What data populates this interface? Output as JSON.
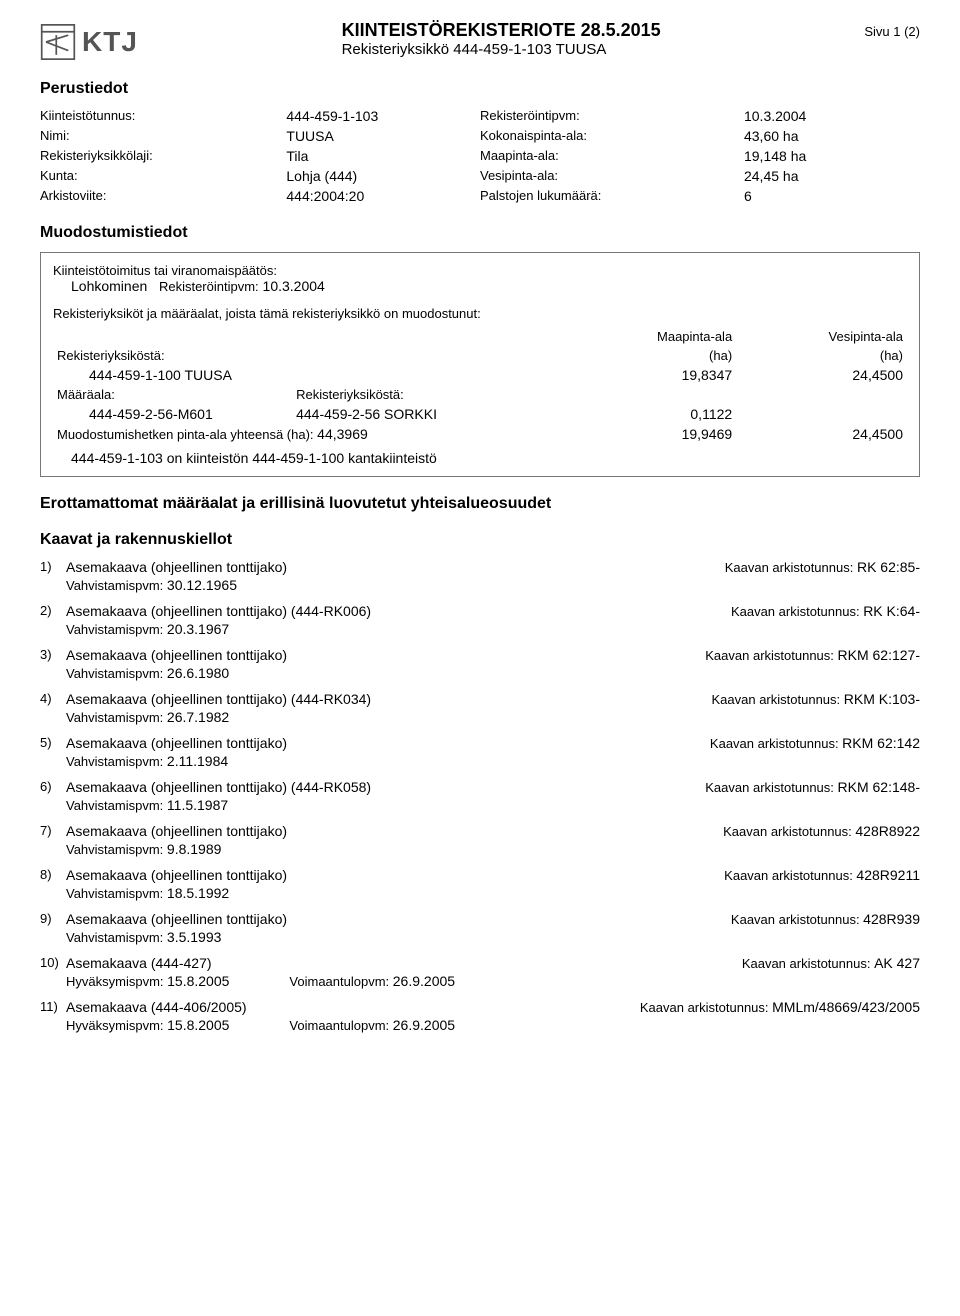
{
  "header": {
    "logo_text": "KTJ",
    "title": "KIINTEISTÖREKISTERIOTE 28.5.2015",
    "subtitle": "Rekisteriyksikkö 444-459-1-103 TUUSA",
    "page": "Sivu 1 (2)"
  },
  "perustiedot": {
    "heading": "Perustiedot",
    "rows": [
      {
        "l1": "Kiinteistötunnus:",
        "v1": "444-459-1-103",
        "l2": "Rekisteröintipvm:",
        "v2": "10.3.2004"
      },
      {
        "l1": "Nimi:",
        "v1": "TUUSA",
        "l2": "Kokonaispinta-ala:",
        "v2": "43,60 ha"
      },
      {
        "l1": "Rekisteriyksikkölaji:",
        "v1": "Tila",
        "l2": "Maapinta-ala:",
        "v2": "19,148 ha"
      },
      {
        "l1": "Kunta:",
        "v1": "Lohja (444)",
        "l2": "Vesipinta-ala:",
        "v2": "24,45 ha"
      },
      {
        "l1": "Arkistoviite:",
        "v1": "444:2004:20",
        "l2": "Palstojen lukumäärä:",
        "v2": "6"
      }
    ]
  },
  "muodostumistiedot": {
    "heading": "Muodostumistiedot",
    "box": {
      "line1_label": "Kiinteistötoimitus tai viranomaispäätös:",
      "line2_action": "Lohkominen",
      "line2_label": "Rekisteröintipvm:",
      "line2_value": "10.3.2004",
      "units_heading": "Rekisteriyksiköt ja määräalat, joista tämä rekisteriyksikkö on muodostunut:",
      "col_maapinta": "Maapinta-ala",
      "col_vesipinta": "Vesipinta-ala",
      "col_ha": "(ha)",
      "from_label": "Rekisteriyksiköstä:",
      "from_unit": "444-459-1-100 TUUSA",
      "from_maap": "19,8347",
      "from_vesip": "24,4500",
      "maaraala_label": "Määräala:",
      "maaraala_from_label": "Rekisteriyksiköstä:",
      "maaraala_id": "444-459-2-56-M601",
      "maaraala_from": "444-459-2-56 SORKKI",
      "maaraala_maap": "0,1122",
      "total_label": "Muodostumishetken pinta-ala yhteensä (ha):",
      "total_val": "44,3969",
      "total_maap": "19,9469",
      "total_vesip": "24,4500",
      "kanta_line": "444-459-1-103 on kiinteistön 444-459-1-100 kantakiinteistö"
    }
  },
  "erottamattomat_heading": "Erottamattomat määräalat ja erillisinä luovutetut yhteisalueosuudet",
  "kaavat": {
    "heading": "Kaavat ja rakennuskiellot",
    "vahvistamis_label": "Vahvistamispvm:",
    "hyvaksymis_label": "Hyväksymispvm:",
    "voimaantulo_label": "Voimaantulopvm:",
    "kaavan_arkisto_label": "Kaavan arkistotunnus:",
    "items": [
      {
        "idx": "1)",
        "title": "Asemakaava (ohjeellinen tonttijako)",
        "arkisto": "RK 62:85-",
        "vdate": "30.12.1965"
      },
      {
        "idx": "2)",
        "title": "Asemakaava (ohjeellinen tonttijako) (444-RK006)",
        "arkisto": "RK K:64-",
        "vdate": "20.3.1967"
      },
      {
        "idx": "3)",
        "title": "Asemakaava (ohjeellinen tonttijako)",
        "arkisto": "RKM 62:127-",
        "vdate": "26.6.1980"
      },
      {
        "idx": "4)",
        "title": "Asemakaava (ohjeellinen tonttijako) (444-RK034)",
        "arkisto": "RKM K:103-",
        "vdate": "26.7.1982"
      },
      {
        "idx": "5)",
        "title": "Asemakaava (ohjeellinen tonttijako)",
        "arkisto": "RKM 62:142",
        "vdate": "2.11.1984"
      },
      {
        "idx": "6)",
        "title": "Asemakaava (ohjeellinen tonttijako) (444-RK058)",
        "arkisto": "RKM 62:148-",
        "vdate": "11.5.1987"
      },
      {
        "idx": "7)",
        "title": "Asemakaava (ohjeellinen tonttijako)",
        "arkisto": "428R8922",
        "vdate": "9.8.1989"
      },
      {
        "idx": "8)",
        "title": "Asemakaava (ohjeellinen tonttijako)",
        "arkisto": "428R9211",
        "vdate": "18.5.1992"
      },
      {
        "idx": "9)",
        "title": "Asemakaava (ohjeellinen tonttijako)",
        "arkisto": "428R939",
        "vdate": "3.5.1993"
      },
      {
        "idx": "10)",
        "title": "Asemakaava (444-427)",
        "arkisto": "AK 427",
        "hdate": "15.8.2005",
        "vtdate": "26.9.2005"
      },
      {
        "idx": "11)",
        "title": "Asemakaava (444-406/2005)",
        "arkisto": "MMLm/48669/423/2005",
        "hdate": "15.8.2005",
        "vtdate": "26.9.2005"
      }
    ]
  }
}
